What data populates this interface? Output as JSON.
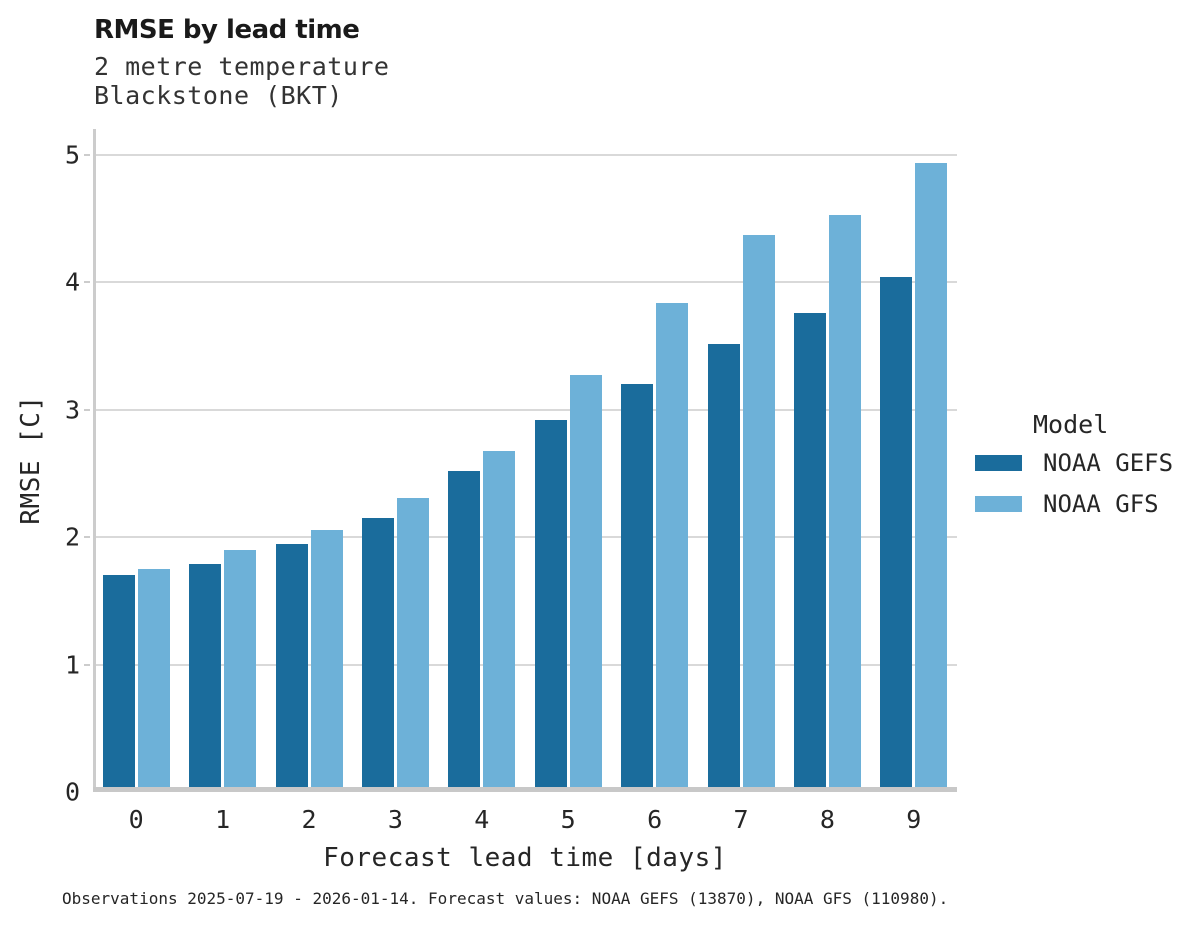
{
  "header": {
    "title": "RMSE by lead time",
    "subtitle_line1": "2 metre temperature",
    "subtitle_line2": "Blackstone (BKT)"
  },
  "legend": {
    "title": "Model",
    "entries": [
      {
        "label": "NOAA GEFS",
        "color": "#1a6c9c"
      },
      {
        "label": "NOAA GFS",
        "color": "#6db1d8"
      }
    ]
  },
  "footer": {
    "caption": "Observations 2025-07-19 - 2026-01-14. Forecast values: NOAA GEFS (13870), NOAA GFS (110980)."
  },
  "chart_data": {
    "type": "bar",
    "title": "RMSE by lead time",
    "subtitle": "2 metre temperature, Blackstone (BKT)",
    "categories": [
      "0",
      "1",
      "2",
      "3",
      "4",
      "5",
      "6",
      "7",
      "8",
      "9"
    ],
    "series": [
      {
        "name": "NOAA GEFS",
        "color": "#1a6c9c",
        "values": [
          1.7,
          1.79,
          1.95,
          2.15,
          2.52,
          2.92,
          3.2,
          3.52,
          3.76,
          4.04
        ]
      },
      {
        "name": "NOAA GFS",
        "color": "#6db1d8",
        "values": [
          1.75,
          1.9,
          2.06,
          2.31,
          2.68,
          3.27,
          3.84,
          4.37,
          4.53,
          4.94
        ]
      }
    ],
    "xlabel": "Forecast lead time [days]",
    "ylabel": "RMSE [C]",
    "ylim": [
      0,
      5.2
    ],
    "yticks": [
      0,
      1,
      2,
      3,
      4,
      5
    ],
    "grid": true,
    "legend_title": "Model",
    "legend_position": "right"
  }
}
